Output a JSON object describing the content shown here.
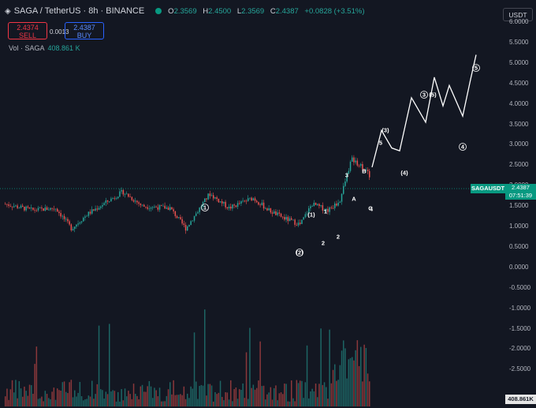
{
  "header": {
    "symbol": "SAGA / TetherUS · 8h · BINANCE",
    "ohlc": {
      "o_label": "O",
      "o": "2.3569",
      "h_label": "H",
      "h": "2.4500",
      "l_label": "L",
      "l": "2.3569",
      "c_label": "C",
      "c": "2.4387",
      "change": "+0.0828 (+3.51%)"
    },
    "sell": {
      "price": "2.4374",
      "label": "SELL"
    },
    "buy": {
      "price": "2.4387",
      "label": "BUY"
    },
    "spread": "0.0013",
    "volume": {
      "label": "Vol · SAGA",
      "value": "408.861 K"
    },
    "currency": "USDT"
  },
  "price_tag": {
    "symbol": "SAGAUSDT",
    "price": "2.4387",
    "countdown": "07:51:39"
  },
  "volume_tag": "408.861K",
  "y_axis": [
    "6.0000",
    "5.5000",
    "5.0000",
    "4.5000",
    "4.0000",
    "3.5000",
    "3.0000",
    "2.5000",
    "2.0000",
    "1.5000",
    "1.0000",
    "0.5000",
    "0.0000",
    "-0.5000",
    "-1.0000",
    "-1.5000",
    "-2.0000",
    "-2.5000"
  ],
  "wave_labels": [
    "1",
    "(1)",
    "1",
    "(2)",
    "2",
    "2",
    "3",
    "B",
    "A",
    "C",
    "4",
    "5",
    "(3)",
    "(4)",
    "3",
    "(5)",
    "4",
    "5"
  ],
  "colors": {
    "up": "#26a69a",
    "down": "#ef5350",
    "bg": "#131722",
    "tag": "#089981"
  },
  "chart_data": {
    "type": "candlestick",
    "ylim": [
      -2.6,
      6.6
    ],
    "projection_path": [
      [
        2.28,
        2.45
      ],
      [
        3.3,
        3.28
      ],
      [
        3.3,
        2.9
      ],
      [
        3.4,
        2.88
      ],
      [
        3.3,
        4.15
      ],
      [
        3.5,
        4.05
      ],
      [
        3.46,
        4.6
      ],
      [
        3.4,
        4.2
      ],
      [
        3.55,
        4.4
      ],
      [
        3.7,
        3.75
      ],
      [
        3.75,
        4.35
      ],
      [
        3.8,
        5.2
      ]
    ]
  }
}
